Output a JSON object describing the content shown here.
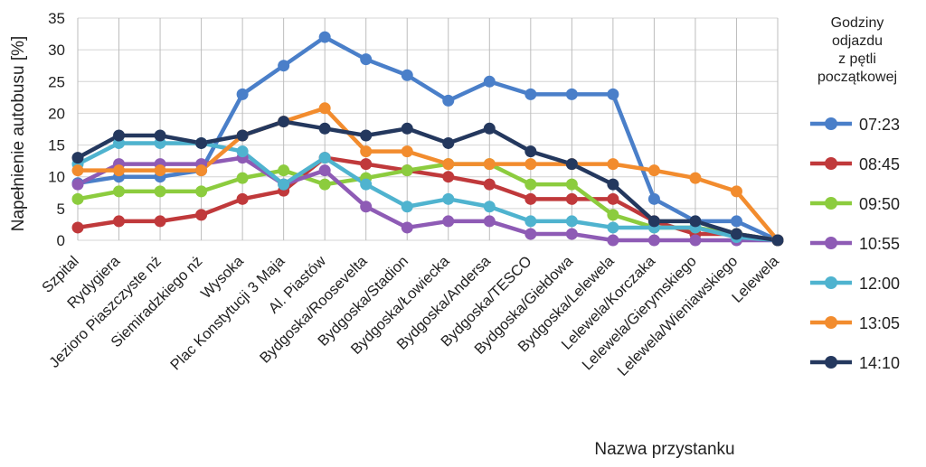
{
  "chart_data": {
    "type": "line",
    "title": "",
    "xlabel": "Nazwa przystanku",
    "ylabel": "Napełnienie autobusu [%]",
    "ylim": [
      0,
      35
    ],
    "yticks": [
      0,
      5,
      10,
      15,
      20,
      25,
      30,
      35
    ],
    "grid": true,
    "legend_position": "right",
    "legend_title": "Godziny odjazdu z pętli początkowej",
    "legend_title_lines": [
      "Godziny",
      "odjazdu",
      "z pętli",
      "początkowej"
    ],
    "categories": [
      "Szpital",
      "Rydygiera",
      "Jezioro Piaszczyste nż",
      "Siemiradzkiego nż",
      "Wysoka",
      "Plac Konstytucji 3 Maja",
      "Al. Piastów",
      "Bydgoska/Roosevelta",
      "Bydgoska/Stadion",
      "Bydgoska/Łowiecka",
      "Bydgoska/Andersa",
      "Bydgoska/TESCO",
      "Bydgoska/Giełdowa",
      "Bydgoska/Lelewela",
      "Lelewela/Korczaka",
      "Lelewela/Gierymskiego",
      "Lelewela/Wieniawskiego",
      "Lelewela"
    ],
    "series": [
      {
        "name": "07:23",
        "color": "#4a7fc9",
        "values": [
          9,
          10,
          10,
          11,
          23,
          27.5,
          32,
          28.5,
          26,
          22,
          25,
          23,
          23,
          23,
          6.5,
          3,
          3,
          0
        ]
      },
      {
        "name": "08:45",
        "color": "#c0393b",
        "values": [
          2,
          3,
          3,
          4,
          6.5,
          7.8,
          13,
          12,
          11,
          10,
          8.8,
          6.5,
          6.5,
          6.5,
          3,
          1,
          1,
          0
        ]
      },
      {
        "name": "09:50",
        "color": "#8ccc3e",
        "values": [
          6.5,
          7.7,
          7.7,
          7.7,
          9.8,
          11,
          8.8,
          9.8,
          11,
          12,
          12,
          8.8,
          8.8,
          4,
          2,
          2,
          1,
          0
        ]
      },
      {
        "name": "10:55",
        "color": "#8e5bb5",
        "values": [
          8.8,
          12,
          12,
          12,
          13,
          8.8,
          11,
          5.3,
          2,
          3,
          3,
          1,
          1,
          0,
          0,
          0,
          0,
          0
        ]
      },
      {
        "name": "12:00",
        "color": "#4fb3cf",
        "values": [
          12,
          15.3,
          15.3,
          15.3,
          14,
          8.8,
          13,
          8.8,
          5.3,
          6.5,
          5.3,
          3,
          3,
          2,
          2,
          2,
          0.5,
          0
        ]
      },
      {
        "name": "13:05",
        "color": "#f28c2e",
        "values": [
          11,
          11,
          11,
          11,
          16.5,
          18.7,
          20.8,
          14,
          14,
          12,
          12,
          12,
          12,
          12,
          11,
          9.8,
          7.7,
          0
        ]
      },
      {
        "name": "14:10",
        "color": "#24385e",
        "values": [
          13,
          16.5,
          16.5,
          15.3,
          16.5,
          18.7,
          17.6,
          16.5,
          17.6,
          15.3,
          17.6,
          14,
          12,
          8.8,
          3,
          3,
          1,
          0
        ]
      }
    ]
  }
}
